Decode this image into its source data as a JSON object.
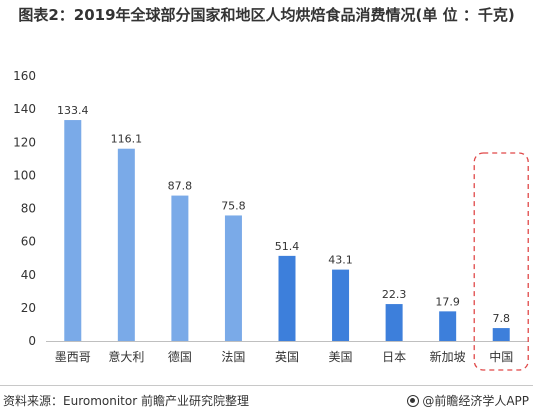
{
  "title": "图表2：2019年全球部分国家和地区人均烘焙食品消费情况(单 位 ：千克)",
  "source": "资料来源：Euromonitor 前瞻产业研究院整理",
  "brand": "@前瞻经济学人APP",
  "colors": {
    "bar_light": "#7aaae8",
    "bar_dark": "#3d7fdb",
    "highlight_border": "#e04848",
    "axis": "#bfbfbf",
    "text": "#333333"
  },
  "chart_data": {
    "type": "bar",
    "title": "图表2：2019年全球部分国家和地区人均烘焙食品消费情况(单 位 ：千克)",
    "xlabel": "",
    "ylabel": "",
    "ylim": [
      0,
      160
    ],
    "yticks": [
      0,
      20,
      40,
      60,
      80,
      100,
      120,
      140,
      160
    ],
    "grid": false,
    "categories": [
      "墨西哥",
      "意大利",
      "德国",
      "法国",
      "英国",
      "美国",
      "日本",
      "新加坡",
      "中国"
    ],
    "values": [
      133.4,
      116.1,
      87.8,
      75.8,
      51.4,
      43.1,
      22.3,
      17.9,
      7.8
    ],
    "value_labels": [
      "133.4",
      "116.1",
      "87.8",
      "75.8",
      "51.4",
      "43.1",
      "22.3",
      "17.9",
      "7.8"
    ],
    "highlight": "中国"
  }
}
